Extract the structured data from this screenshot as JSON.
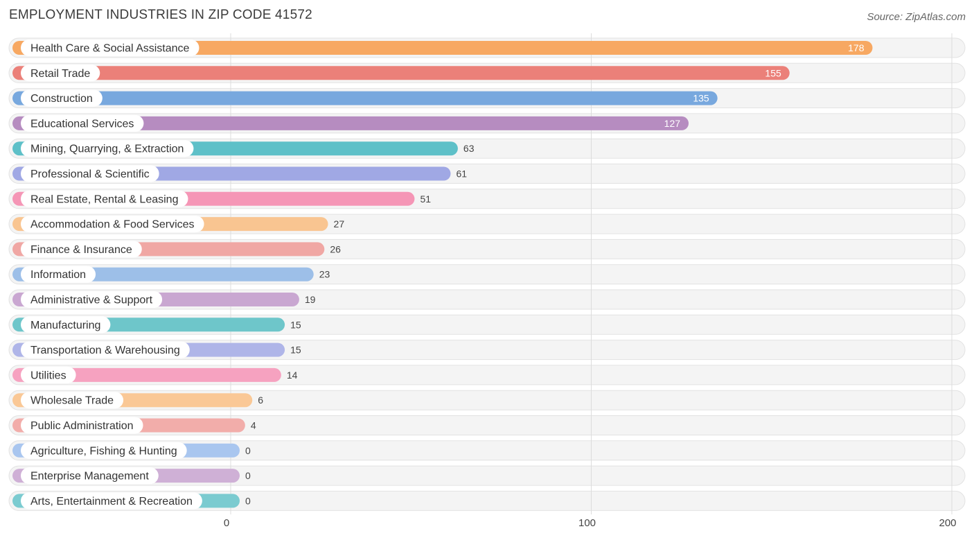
{
  "chart_data": {
    "type": "bar",
    "orientation": "horizontal",
    "title": "EMPLOYMENT INDUSTRIES IN ZIP CODE 41572",
    "source": "Source: ZipAtlas.com",
    "xlim": [
      0,
      200
    ],
    "ticks": [
      0,
      100,
      200
    ],
    "tick_labels": [
      "0",
      "100",
      "200"
    ],
    "grid": true,
    "categories": [
      "Health Care & Social Assistance",
      "Retail Trade",
      "Construction",
      "Educational Services",
      "Mining, Quarrying, & Extraction",
      "Professional & Scientific",
      "Real Estate, Rental & Leasing",
      "Accommodation & Food Services",
      "Finance & Insurance",
      "Information",
      "Administrative & Support",
      "Manufacturing",
      "Transportation & Warehousing",
      "Utilities",
      "Wholesale Trade",
      "Public Administration",
      "Agriculture, Fishing & Hunting",
      "Enterprise Management",
      "Arts, Entertainment & Recreation"
    ],
    "values": [
      178,
      155,
      135,
      127,
      63,
      61,
      51,
      27,
      26,
      23,
      19,
      15,
      15,
      14,
      6,
      4,
      0,
      0,
      0
    ],
    "value_labels": [
      "178",
      "155",
      "135",
      "127",
      "63",
      "61",
      "51",
      "27",
      "26",
      "23",
      "19",
      "15",
      "15",
      "14",
      "6",
      "4",
      "0",
      "0",
      "0"
    ],
    "colors": [
      "#f7a862",
      "#eb8079",
      "#78a8de",
      "#b68cc0",
      "#5ec0c8",
      "#a0a8e4",
      "#f596b6",
      "#f9c591",
      "#f0a7a4",
      "#9dbfe8",
      "#c9a7d1",
      "#6ec6ca",
      "#afb5e8",
      "#f6a2c0",
      "#fac896",
      "#f2adaa",
      "#a9c6ef",
      "#cfb0d6",
      "#7bcbd0"
    ]
  }
}
